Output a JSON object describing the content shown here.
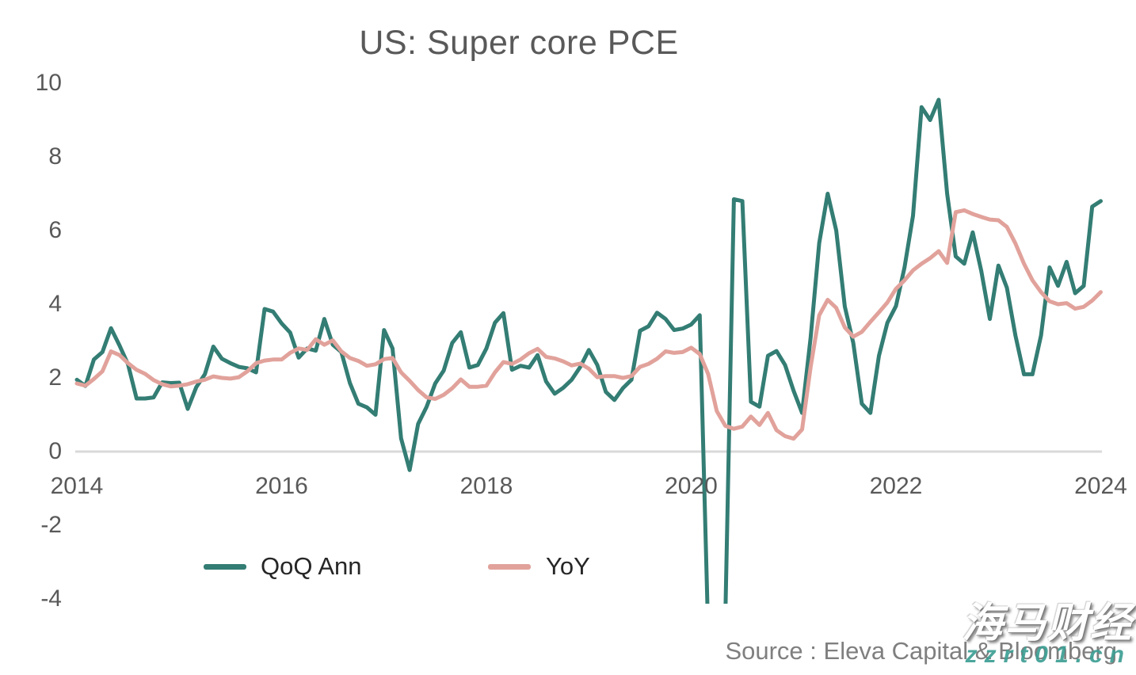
{
  "title": "US: Super core PCE",
  "source": "Source : Eleva Capital & Bloomberg",
  "watermark": {
    "cn": "海马财经",
    "site": "zzrt01.cn"
  },
  "legend": {
    "items": [
      {
        "label": "QoQ Ann",
        "color": "#337D74"
      },
      {
        "label": "YoY",
        "color": "#E1A29B"
      }
    ]
  },
  "axes": {
    "y_ticks": [
      10,
      8,
      6,
      4,
      2,
      0,
      -2,
      -4
    ],
    "x_ticks": [
      2014,
      2016,
      2018,
      2020,
      2022,
      2024
    ]
  },
  "colors": {
    "qoq_line": "#337D74",
    "yoy_line": "#E1A29B",
    "axis_line": "#D9D9D9",
    "tick_text": "#595959",
    "title_text": "#595959",
    "legend_text": "#262626",
    "source_text": "#7F7F7F"
  },
  "chart_data": {
    "type": "line",
    "title": "US: Super core PCE",
    "frequency": "monthly",
    "x_start": "2014-01",
    "x_end": "2024-01",
    "ylim": [
      -4,
      10
    ],
    "grid": false,
    "legend_position": "bottom",
    "note": "QoQ Ann values below -4 in spring 2020 are clipped by the plot area",
    "series": [
      {
        "name": "QoQ Ann",
        "color": "#337D74",
        "values": [
          1.95,
          1.78,
          2.5,
          2.7,
          3.35,
          2.88,
          2.37,
          1.44,
          1.44,
          1.47,
          1.88,
          1.86,
          1.87,
          1.16,
          1.75,
          2.1,
          2.85,
          2.52,
          2.4,
          2.3,
          2.26,
          2.15,
          3.87,
          3.8,
          3.48,
          3.23,
          2.55,
          2.8,
          2.74,
          3.6,
          2.9,
          2.7,
          1.86,
          1.3,
          1.2,
          1.0,
          3.3,
          2.8,
          0.36,
          -0.5,
          0.75,
          1.22,
          1.85,
          2.2,
          2.95,
          3.24,
          2.28,
          2.35,
          2.8,
          3.5,
          3.76,
          2.22,
          2.33,
          2.28,
          2.62,
          1.9,
          1.57,
          1.73,
          1.95,
          2.3,
          2.76,
          2.35,
          1.62,
          1.4,
          1.72,
          1.95,
          3.28,
          3.4,
          3.77,
          3.6,
          3.3,
          3.34,
          3.45,
          3.7,
          -5.0,
          -6.0,
          -4.5,
          6.85,
          6.8,
          1.35,
          1.22,
          2.6,
          2.73,
          2.35,
          1.65,
          1.05,
          3.1,
          5.66,
          7.0,
          6.0,
          3.94,
          2.95,
          1.3,
          1.05,
          2.6,
          3.5,
          3.95,
          5.0,
          6.4,
          9.35,
          9.0,
          9.55,
          7.0,
          5.3,
          5.1,
          5.95,
          4.9,
          3.6,
          5.05,
          4.45,
          3.15,
          2.1,
          2.1,
          3.15,
          5.0,
          4.5,
          5.15,
          4.3,
          4.5,
          6.65,
          6.8
        ]
      },
      {
        "name": "YoY",
        "color": "#E1A29B",
        "values": [
          1.85,
          1.79,
          1.97,
          2.18,
          2.72,
          2.62,
          2.4,
          2.22,
          2.11,
          1.94,
          1.83,
          1.77,
          1.79,
          1.83,
          1.9,
          1.95,
          2.04,
          2.0,
          1.98,
          2.02,
          2.18,
          2.4,
          2.47,
          2.5,
          2.5,
          2.68,
          2.8,
          2.76,
          3.05,
          2.9,
          3.02,
          2.72,
          2.54,
          2.46,
          2.33,
          2.37,
          2.51,
          2.54,
          2.15,
          1.92,
          1.67,
          1.47,
          1.43,
          1.54,
          1.72,
          1.96,
          1.76,
          1.76,
          1.79,
          2.15,
          2.43,
          2.38,
          2.5,
          2.67,
          2.79,
          2.57,
          2.53,
          2.45,
          2.34,
          2.39,
          2.25,
          2.02,
          2.05,
          2.05,
          2.0,
          2.05,
          2.3,
          2.38,
          2.52,
          2.72,
          2.68,
          2.7,
          2.82,
          2.65,
          2.1,
          1.1,
          0.7,
          0.62,
          0.68,
          0.95,
          0.72,
          1.05,
          0.58,
          0.42,
          0.35,
          0.6,
          2.3,
          3.7,
          4.12,
          3.9,
          3.37,
          3.12,
          3.25,
          3.52,
          3.78,
          4.05,
          4.42,
          4.65,
          4.92,
          5.1,
          5.25,
          5.44,
          5.12,
          6.5,
          6.55,
          6.45,
          6.37,
          6.3,
          6.28,
          6.1,
          5.65,
          5.1,
          4.65,
          4.33,
          4.08,
          4.0,
          4.03,
          3.88,
          3.93,
          4.1,
          4.33
        ]
      }
    ]
  }
}
